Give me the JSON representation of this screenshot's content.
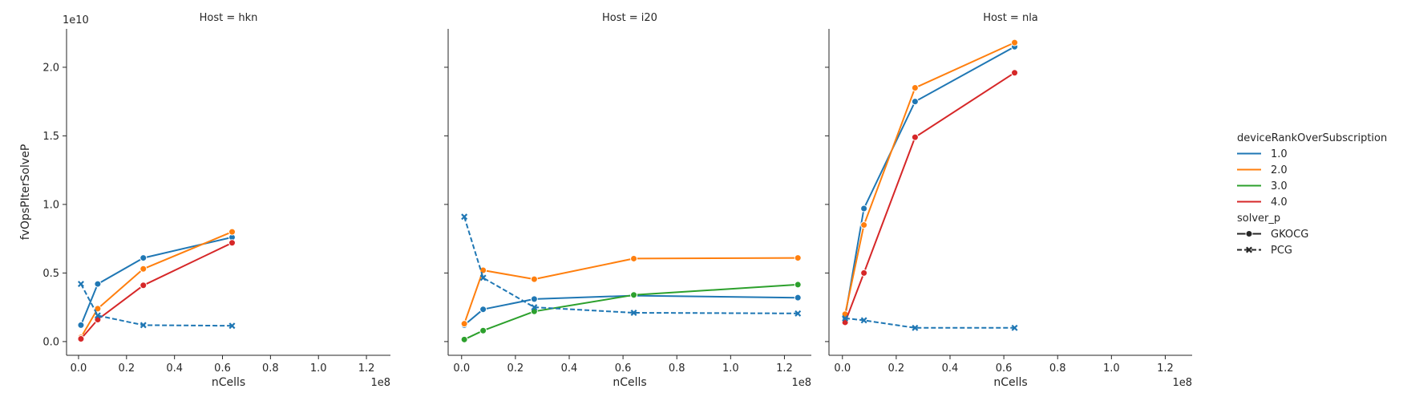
{
  "chart_data": {
    "type": "line",
    "facet_variable": "Host",
    "xlabel": "nCells",
    "ylabel": "fvOpsPIterSolveP",
    "x_offset_text": "1e8",
    "y_offset_text": "1e10",
    "xlim": [
      -0.05,
      1.3
    ],
    "ylim": [
      -0.1,
      2.28
    ],
    "xticks": [
      0.0,
      0.2,
      0.4,
      0.6,
      0.8,
      1.0,
      1.2
    ],
    "xtick_labels": [
      "0.0",
      "0.2",
      "0.4",
      "0.6",
      "0.8",
      "1.0",
      "1.2"
    ],
    "yticks": [
      0.0,
      0.5,
      1.0,
      1.5,
      2.0
    ],
    "ytick_labels": [
      "0.0",
      "0.5",
      "1.0",
      "1.5",
      "2.0"
    ],
    "legend": {
      "hue_title": "deviceRankOverSubscription",
      "hue_entries": [
        {
          "label": "1.0",
          "color": "#1f77b4"
        },
        {
          "label": "2.0",
          "color": "#ff7f0e"
        },
        {
          "label": "3.0",
          "color": "#2ca02c"
        },
        {
          "label": "4.0",
          "color": "#d62728"
        }
      ],
      "style_title": "solver_p",
      "style_entries": [
        {
          "label": "GKOCG",
          "dash": "solid",
          "marker": "circle"
        },
        {
          "label": "PCG",
          "dash": "dashed",
          "marker": "x"
        }
      ],
      "placement": "right"
    },
    "facets": [
      {
        "title": "Host = hkn",
        "series": [
          {
            "hue": "1.0",
            "solver": "GKOCG",
            "color": "#1f77b4",
            "dash": "solid",
            "marker": "circle",
            "x": [
              0.01,
              0.08,
              0.27,
              0.64
            ],
            "y": [
              0.12,
              0.42,
              0.61,
              0.76
            ]
          },
          {
            "hue": "2.0",
            "solver": "GKOCG",
            "color": "#ff7f0e",
            "dash": "solid",
            "marker": "circle",
            "x": [
              0.01,
              0.08,
              0.27,
              0.64
            ],
            "y": [
              0.03,
              0.24,
              0.53,
              0.8
            ]
          },
          {
            "hue": "4.0",
            "solver": "GKOCG",
            "color": "#d62728",
            "dash": "solid",
            "marker": "circle",
            "x": [
              0.01,
              0.08,
              0.27,
              0.64
            ],
            "y": [
              0.02,
              0.16,
              0.41,
              0.72
            ]
          },
          {
            "hue": "1.0",
            "solver": "PCG",
            "color": "#1f77b4",
            "dash": "dashed",
            "marker": "x",
            "x": [
              0.01,
              0.08,
              0.27,
              0.64
            ],
            "y": [
              0.42,
              0.19,
              0.12,
              0.115
            ]
          }
        ]
      },
      {
        "title": "Host = i20",
        "series": [
          {
            "hue": "1.0",
            "solver": "GKOCG",
            "color": "#1f77b4",
            "dash": "solid",
            "marker": "circle",
            "x": [
              0.01,
              0.08,
              0.27,
              0.64,
              1.25
            ],
            "y": [
              0.12,
              0.235,
              0.31,
              0.335,
              0.32
            ]
          },
          {
            "hue": "2.0",
            "solver": "GKOCG",
            "color": "#ff7f0e",
            "dash": "solid",
            "marker": "circle",
            "x": [
              0.01,
              0.08,
              0.27,
              0.64,
              1.25
            ],
            "y": [
              0.13,
              0.52,
              0.455,
              0.605,
              0.61
            ]
          },
          {
            "hue": "3.0",
            "solver": "GKOCG",
            "color": "#2ca02c",
            "dash": "solid",
            "marker": "circle",
            "x": [
              0.01,
              0.08,
              0.27,
              0.64,
              1.25
            ],
            "y": [
              0.015,
              0.08,
              0.22,
              0.34,
              0.415
            ]
          },
          {
            "hue": "1.0",
            "solver": "PCG",
            "color": "#1f77b4",
            "dash": "dashed",
            "marker": "x",
            "x": [
              0.01,
              0.08,
              0.27,
              0.64,
              1.25
            ],
            "y": [
              0.91,
              0.465,
              0.25,
              0.21,
              0.205
            ]
          }
        ]
      },
      {
        "title": "Host = nla",
        "series": [
          {
            "hue": "1.0",
            "solver": "GKOCG",
            "color": "#1f77b4",
            "dash": "solid",
            "marker": "circle",
            "x": [
              0.01,
              0.08,
              0.27,
              0.64
            ],
            "y": [
              0.18,
              0.97,
              1.75,
              2.15
            ]
          },
          {
            "hue": "2.0",
            "solver": "GKOCG",
            "color": "#ff7f0e",
            "dash": "solid",
            "marker": "circle",
            "x": [
              0.01,
              0.08,
              0.27,
              0.64
            ],
            "y": [
              0.2,
              0.85,
              1.85,
              2.18
            ]
          },
          {
            "hue": "4.0",
            "solver": "GKOCG",
            "color": "#d62728",
            "dash": "solid",
            "marker": "circle",
            "x": [
              0.01,
              0.08,
              0.27,
              0.64
            ],
            "y": [
              0.14,
              0.5,
              1.49,
              1.96
            ]
          },
          {
            "hue": "1.0",
            "solver": "PCG",
            "color": "#1f77b4",
            "dash": "dashed",
            "marker": "x",
            "x": [
              0.01,
              0.08,
              0.27,
              0.64
            ],
            "y": [
              0.17,
              0.155,
              0.1,
              0.1
            ]
          }
        ]
      }
    ]
  }
}
